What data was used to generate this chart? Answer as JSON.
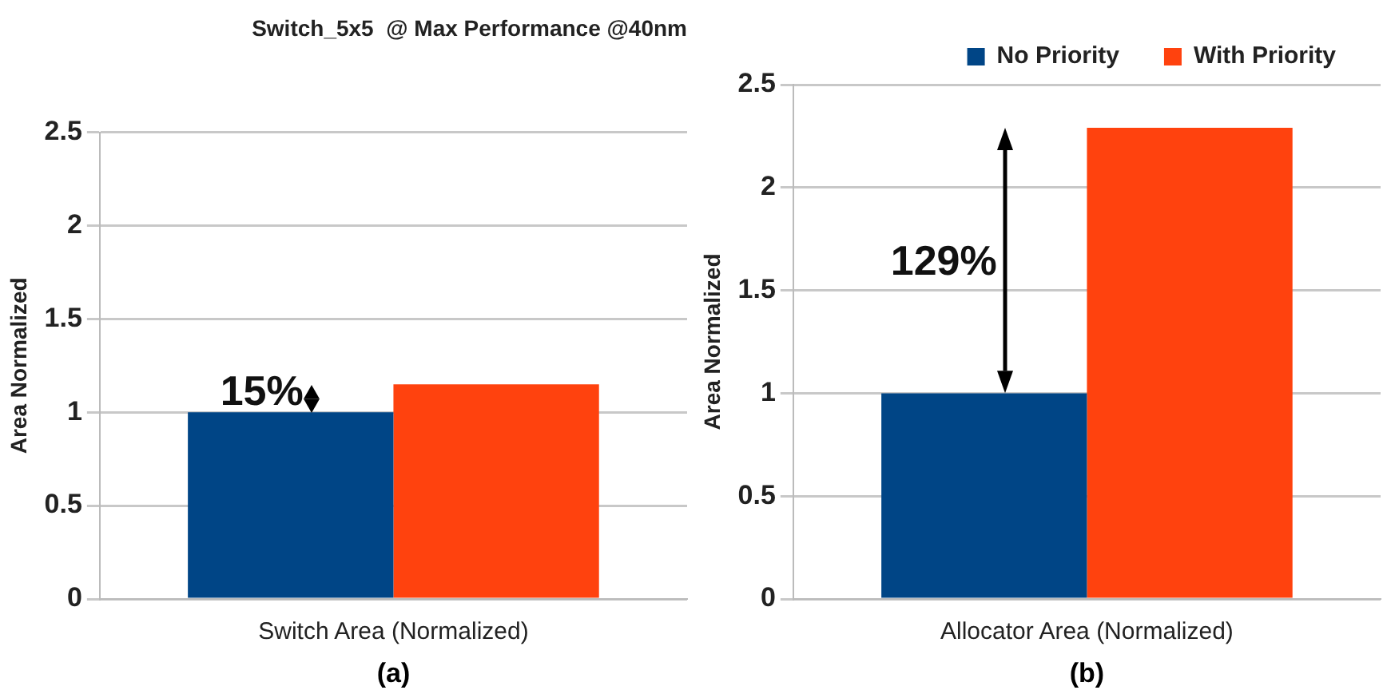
{
  "chart_data": [
    {
      "type": "bar",
      "title": "Switch_5x5  @ Max Performance @40nm",
      "categories": [
        "Switch Area (Normalized)"
      ],
      "ylabel": "Area Normalized",
      "ylim": [
        0,
        2.5
      ],
      "yticks": [
        0,
        0.5,
        1,
        1.5,
        2,
        2.5
      ],
      "grid": "y",
      "legend": false,
      "series": [
        {
          "color": "#004586",
          "values": [
            1
          ]
        },
        {
          "color": "#ff420e",
          "values": [
            1.15
          ]
        }
      ],
      "annotations": [
        {
          "text": "15%",
          "x": "Switch Area (Normalized)",
          "y": 1.1
        },
        "(a)"
      ]
    },
    {
      "type": "bar",
      "categories": [
        "Allocator Area (Normalized)"
      ],
      "ylabel": "Area Normalized",
      "ylim": [
        0,
        2.5
      ],
      "yticks": [
        0,
        0.5,
        1,
        1.5,
        2,
        2.5
      ],
      "grid": "y",
      "legend": "top right",
      "series": [
        {
          "name": "No Priority",
          "color": "#004586",
          "values": [
            1
          ]
        },
        {
          "name": "With Priority",
          "color": "#ff420e",
          "values": [
            2.29
          ]
        }
      ],
      "annotations": [
        {
          "text": "129%",
          "x": "Allocator Area (Normalized)",
          "y": 1.63
        },
        "(b)"
      ]
    }
  ]
}
